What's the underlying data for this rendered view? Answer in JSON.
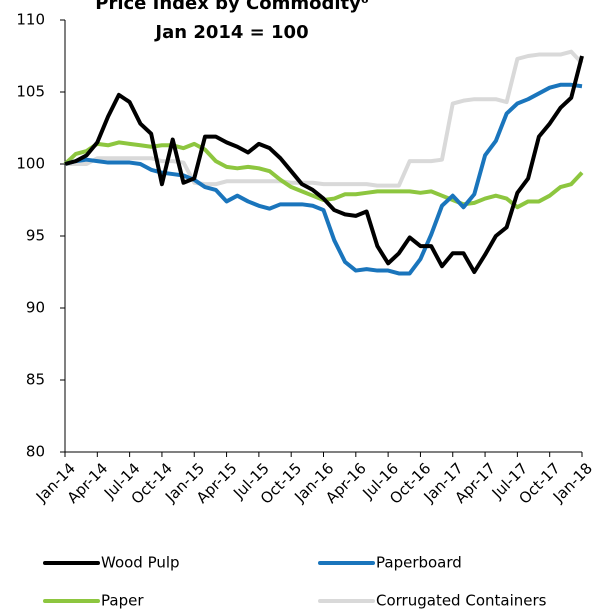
{
  "chart_data": {
    "type": "line",
    "title": "Price Index by Commodity⁶",
    "subtitle": "Jan 2014 = 100",
    "categories": [
      "Jan-14",
      null,
      null,
      "Apr-14",
      null,
      null,
      "Jul-14",
      null,
      null,
      "Oct-14",
      null,
      null,
      "Jan-15",
      null,
      null,
      "Apr-15",
      null,
      null,
      "Jul-15",
      null,
      null,
      "Oct-15",
      null,
      null,
      "Jan-16",
      null,
      null,
      "Apr-16",
      null,
      null,
      "Jul-16",
      null,
      null,
      "Oct-16",
      null,
      null,
      "Jan-17",
      null,
      null,
      "Apr-17",
      null,
      null,
      "Jul-17",
      null,
      null,
      "Oct-17",
      null,
      null,
      "Jan-18"
    ],
    "series": [
      {
        "name": "Wood Pulp",
        "color": "#000000",
        "values": [
          100,
          100.2,
          100.6,
          101.5,
          103.3,
          104.8,
          104.3,
          102.8,
          102.1,
          98.6,
          101.7,
          98.7,
          99,
          101.9,
          101.9,
          101.5,
          101.2,
          100.8,
          101.4,
          101.1,
          100.4,
          99.5,
          98.6,
          98.2,
          97.6,
          96.8,
          96.5,
          96.4,
          96.7,
          94.3,
          93.1,
          93.8,
          94.9,
          94.3,
          94.3,
          92.9,
          93.8,
          93.8,
          92.5,
          93.7,
          95,
          95.6,
          98,
          99,
          101.9,
          102.8,
          103.9,
          104.6,
          107.5
        ]
      },
      {
        "name": "Paperboard",
        "color": "#1a75bc",
        "values": [
          100,
          100.2,
          100.3,
          100.2,
          100.1,
          100.1,
          100.1,
          100,
          99.6,
          99.4,
          99.3,
          99.2,
          98.9,
          98.4,
          98.2,
          97.4,
          97.8,
          97.4,
          97.1,
          96.9,
          97.2,
          97.2,
          97.2,
          97.1,
          96.8,
          94.7,
          93.2,
          92.6,
          92.7,
          92.6,
          92.6,
          92.4,
          92.4,
          93.4,
          95.1,
          97.1,
          97.8,
          97,
          97.9,
          100.6,
          101.6,
          103.5,
          104.2,
          104.5,
          104.9,
          105.3,
          105.5,
          105.5,
          105.4
        ]
      },
      {
        "name": "Paper",
        "color": "#8dc63f",
        "values": [
          100,
          100.7,
          100.9,
          101.4,
          101.3,
          101.5,
          101.4,
          101.3,
          101.2,
          101.3,
          101.3,
          101.1,
          101.4,
          101,
          100.2,
          99.8,
          99.7,
          99.8,
          99.7,
          99.5,
          98.9,
          98.4,
          98.1,
          97.8,
          97.5,
          97.6,
          97.9,
          97.9,
          98,
          98.1,
          98.1,
          98.1,
          98.1,
          98,
          98.1,
          97.8,
          97.5,
          97.2,
          97.3,
          97.6,
          97.8,
          97.6,
          97,
          97.4,
          97.4,
          97.8,
          98.4,
          98.6,
          99.4
        ]
      },
      {
        "name": "Corrugated Containers",
        "color": "#d9d9d9",
        "values": [
          100,
          100,
          100,
          100.4,
          100.4,
          100.4,
          100.4,
          100.4,
          100.4,
          100.2,
          100.2,
          100.1,
          98.7,
          98.6,
          98.6,
          98.8,
          98.8,
          98.8,
          98.8,
          98.8,
          98.8,
          98.7,
          98.7,
          98.7,
          98.6,
          98.6,
          98.6,
          98.6,
          98.6,
          98.5,
          98.5,
          98.5,
          100.2,
          100.2,
          100.2,
          100.3,
          104.2,
          104.4,
          104.5,
          104.5,
          104.5,
          104.3,
          107.3,
          107.5,
          107.6,
          107.6,
          107.6,
          107.8,
          107
        ]
      }
    ],
    "ylim": [
      80,
      110
    ],
    "yticks": [
      80,
      85,
      90,
      95,
      100,
      105,
      110
    ],
    "grid": false,
    "legend": "bottom"
  }
}
